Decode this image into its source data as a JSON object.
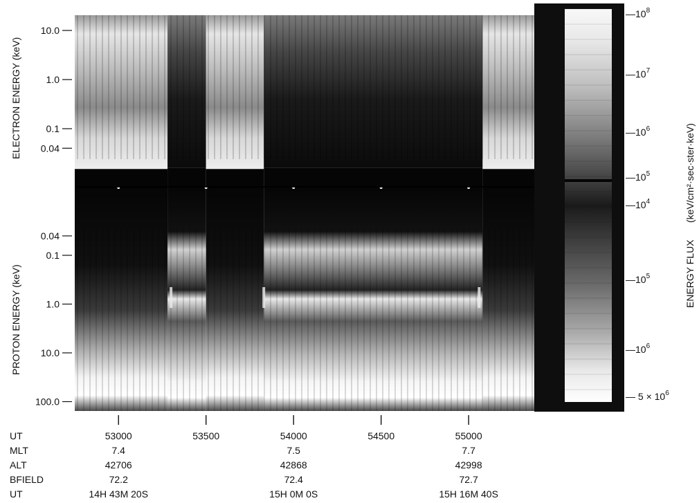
{
  "chart_data": {
    "type": "heatmap",
    "colors": {
      "background": "#ffffff",
      "ink": "#111111"
    },
    "electron_panel": {
      "ylabel": "ELECTRON ENERGY (keV)",
      "yticks": [
        "10.0",
        "1.0",
        "0.1",
        "0.04"
      ],
      "ytick_values": [
        10.0,
        1.0,
        0.1,
        0.04
      ]
    },
    "proton_panel": {
      "ylabel": "PROTON ENERGY (keV)",
      "yticks": [
        "0.04",
        "0.1",
        "1.0",
        "10.0",
        "100.0"
      ],
      "ytick_values": [
        0.04,
        0.1,
        1.0,
        10.0,
        100.0
      ]
    },
    "x_axis": {
      "ticks": [
        53000,
        53500,
        54000,
        54500,
        55000
      ],
      "range": [
        52750,
        55375
      ]
    },
    "ephemeris": {
      "labels": [
        "UT",
        "MLT",
        "ALT",
        "BFIELD",
        "UT"
      ],
      "ut_seconds": [
        "53000",
        "53500",
        "54000",
        "54500",
        "55000"
      ],
      "mlt": [
        "7.4",
        "7.5",
        "7.7"
      ],
      "alt": [
        "42706",
        "42868",
        "42998"
      ],
      "bfield": [
        "72.2",
        "72.4",
        "72.7"
      ],
      "ut_hms": [
        "14H 43M 20S",
        "15H 0M 0S",
        "15H 16M 40S"
      ]
    },
    "colorbar": {
      "title": "ENERGY FLUX",
      "units": "(keV/cm²·sec·ster·keV)",
      "upper_ticks": [
        {
          "base": "—10",
          "exp": "8"
        },
        {
          "base": "—10",
          "exp": "7"
        },
        {
          "base": "—10",
          "exp": "6"
        },
        {
          "base": "—10",
          "exp": "5"
        }
      ],
      "lower_ticks": [
        {
          "base": "—10",
          "exp": "4"
        },
        {
          "base": "—10",
          "exp": "5"
        },
        {
          "base": "—10",
          "exp": "6"
        },
        {
          "base": "— 5 × 10",
          "exp": "6"
        }
      ]
    },
    "events_x": [
      53300,
      53830,
      55060
    ],
    "electron_regions": [
      {
        "from": 52750,
        "to": 53280,
        "state": "bright"
      },
      {
        "from": 53280,
        "to": 53500,
        "state": "dark"
      },
      {
        "from": 53500,
        "to": 53830,
        "state": "bright"
      },
      {
        "from": 53830,
        "to": 55080,
        "state": "dark"
      },
      {
        "from": 55080,
        "to": 55375,
        "state": "bright"
      }
    ],
    "proton_regions": [
      {
        "from": 52750,
        "to": 53280,
        "state": "quiet"
      },
      {
        "from": 53280,
        "to": 53500,
        "state": "active"
      },
      {
        "from": 53500,
        "to": 53830,
        "state": "quiet"
      },
      {
        "from": 53830,
        "to": 55080,
        "state": "active"
      },
      {
        "from": 55080,
        "to": 55375,
        "state": "quiet"
      }
    ]
  }
}
